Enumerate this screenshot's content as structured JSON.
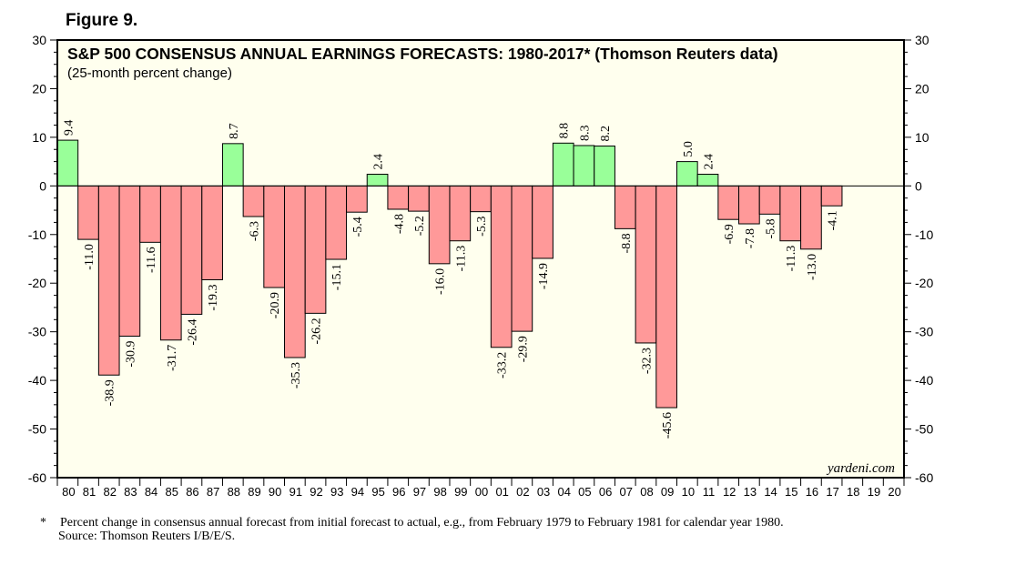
{
  "figure_label": "Figure 9.",
  "watermark": "yardeni.com",
  "footnote": {
    "marker": "*",
    "text": "Percent change in consensus annual forecast from initial forecast to actual, e.g., from February 1979 to February 1981 for calendar year 1980.",
    "source": "Source: Thomson Reuters I/B/E/S."
  },
  "colors": {
    "positive": "#99ff99",
    "negative": "#ff9999",
    "plot_background": "#ffffee",
    "frame": "#000000"
  },
  "chart_data": {
    "type": "bar",
    "title": "S&P 500 CONSENSUS ANNUAL EARNINGS FORECASTS: 1980-2017* (Thomson Reuters data)",
    "subtitle": "(25-month percent change)",
    "xlabel": "",
    "ylabel": "",
    "ylim": [
      -60,
      30
    ],
    "yticks": [
      -60,
      -50,
      -40,
      -30,
      -20,
      -10,
      0,
      10,
      20,
      30
    ],
    "grid": false,
    "categories": [
      "80",
      "81",
      "82",
      "83",
      "84",
      "85",
      "86",
      "87",
      "88",
      "89",
      "90",
      "91",
      "92",
      "93",
      "94",
      "95",
      "96",
      "97",
      "98",
      "99",
      "00",
      "01",
      "02",
      "03",
      "04",
      "05",
      "06",
      "07",
      "08",
      "09",
      "10",
      "11",
      "12",
      "13",
      "14",
      "15",
      "16",
      "17",
      "18",
      "19",
      "20"
    ],
    "values": [
      9.4,
      -11.0,
      -38.9,
      -30.9,
      -11.6,
      -31.7,
      -26.4,
      -19.3,
      8.7,
      -6.3,
      -20.9,
      -35.3,
      -26.2,
      -15.1,
      -5.4,
      2.4,
      -4.8,
      -5.2,
      -16.0,
      -11.3,
      -5.3,
      -33.2,
      -29.9,
      -14.9,
      8.8,
      8.3,
      8.2,
      -8.8,
      -32.3,
      -45.6,
      5.0,
      2.4,
      -6.9,
      -7.8,
      -5.8,
      -11.3,
      -13.0,
      -4.1,
      null,
      null,
      null
    ],
    "labels": [
      "9.4",
      "-11.0",
      "-38.9",
      "-30.9",
      "-11.6",
      "-31.7",
      "-26.4",
      "-19.3",
      "8.7",
      "-6.3",
      "-20.9",
      "-35.3",
      "-26.2",
      "-15.1",
      "-5.4",
      "2.4",
      "-4.8",
      "-5.2",
      "-16.0",
      "-11.3",
      "-5.3",
      "-33.2",
      "-29.9",
      "-14.9",
      "8.8",
      "8.3",
      "8.2",
      "-8.8",
      "-32.3",
      "-45.6",
      "5.0",
      "2.4",
      "-6.9",
      "-7.8",
      "-5.8",
      "-11.3",
      "-13.0",
      "-4.1",
      null,
      null,
      null
    ]
  }
}
